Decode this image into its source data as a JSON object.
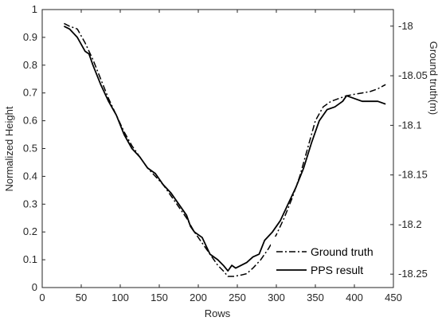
{
  "chart_data": {
    "type": "line",
    "xlabel": "Rows",
    "ylabel": "Normalized Height",
    "y2label": "Ground truth(m)",
    "xlim": [
      0,
      450
    ],
    "ylim": [
      0,
      1
    ],
    "y2lim": [
      -18.2635,
      -17.9833
    ],
    "x_ticks": [
      "0",
      "50",
      "100",
      "150",
      "200",
      "250",
      "300",
      "350",
      "400",
      "450"
    ],
    "y_ticks": [
      "0",
      "0.1",
      "0.2",
      "0.3",
      "0.4",
      "0.5",
      "0.6",
      "0.7",
      "0.8",
      "0.9",
      "1"
    ],
    "y2_ticks": [
      "-18",
      "-18.05",
      "-18.1",
      "-18.15",
      "-18.2",
      "-18.25"
    ],
    "grid": false,
    "legend_position": "bottom-right",
    "series": [
      {
        "name": "Ground truth",
        "style": "dashdot",
        "axis": "left",
        "x": [
          28,
          35,
          45,
          55,
          65,
          75,
          85,
          95,
          105,
          115,
          125,
          135,
          145,
          155,
          165,
          175,
          185,
          195,
          205,
          215,
          225,
          232,
          238,
          245,
          255,
          262,
          270,
          280,
          290,
          300,
          310,
          320,
          330,
          340,
          350,
          360,
          370,
          380,
          390,
          400,
          410,
          420,
          430,
          440
        ],
        "y": [
          0.95,
          0.94,
          0.93,
          0.88,
          0.82,
          0.75,
          0.68,
          0.62,
          0.56,
          0.51,
          0.47,
          0.43,
          0.4,
          0.37,
          0.33,
          0.29,
          0.25,
          0.2,
          0.16,
          0.12,
          0.08,
          0.06,
          0.04,
          0.04,
          0.045,
          0.05,
          0.07,
          0.1,
          0.14,
          0.19,
          0.25,
          0.32,
          0.4,
          0.5,
          0.6,
          0.65,
          0.67,
          0.68,
          0.69,
          0.695,
          0.7,
          0.705,
          0.715,
          0.73
        ]
      },
      {
        "name": "PPS result",
        "style": "solid",
        "axis": "left",
        "x": [
          28,
          35,
          45,
          55,
          60,
          65,
          75,
          85,
          95,
          105,
          115,
          125,
          135,
          145,
          155,
          165,
          175,
          185,
          190,
          195,
          205,
          215,
          225,
          232,
          238,
          243,
          248,
          255,
          262,
          270,
          278,
          285,
          295,
          305,
          315,
          325,
          335,
          345,
          355,
          365,
          375,
          385,
          390,
          400,
          410,
          420,
          430,
          440
        ],
        "y": [
          0.94,
          0.93,
          0.9,
          0.85,
          0.84,
          0.8,
          0.73,
          0.67,
          0.62,
          0.55,
          0.5,
          0.47,
          0.43,
          0.41,
          0.37,
          0.34,
          0.3,
          0.26,
          0.22,
          0.2,
          0.18,
          0.12,
          0.1,
          0.08,
          0.06,
          0.08,
          0.07,
          0.08,
          0.09,
          0.11,
          0.12,
          0.17,
          0.2,
          0.24,
          0.3,
          0.36,
          0.43,
          0.52,
          0.6,
          0.64,
          0.65,
          0.67,
          0.69,
          0.68,
          0.67,
          0.67,
          0.67,
          0.66
        ]
      }
    ]
  }
}
